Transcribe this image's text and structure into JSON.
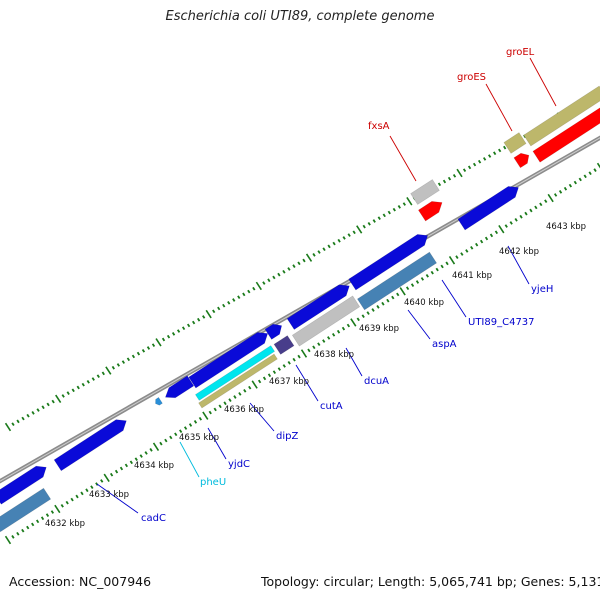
{
  "title": "Escherichia coli UTI89, complete genome",
  "footer": {
    "accession": "Accession: NC_007946",
    "topology": "Topology: circular; Length: 5,065,741 bp; Genes: 5,131"
  },
  "colors": {
    "background": "#ffffff",
    "backbone": "#8c8c8c",
    "tick": "#1a7a1a",
    "blue_gene": "#0a0ad8",
    "steelblue_gene": "#4682b4",
    "red_gene": "#ff0000",
    "gray_gene": "#c0c0c0",
    "khaki_gene": "#bdb76b",
    "cyan_gene": "#00e5ee",
    "slate_gene": "#483d8b",
    "blue_label": "#0000cc",
    "red_label": "#cc0000",
    "cyan_label": "#00bbdd"
  },
  "scale_labels": [
    "4632 kbp",
    "4633 kbp",
    "4634 kbp",
    "4635 kbp",
    "4636 kbp",
    "4637 kbp",
    "4638 kbp",
    "4639 kbp",
    "4640 kbp",
    "4641 kbp",
    "4642 kbp",
    "4643 kbp"
  ],
  "gene_labels": [
    {
      "text": "cadC",
      "color": "blue"
    },
    {
      "text": "pheU",
      "color": "cyan"
    },
    {
      "text": "yjdC",
      "color": "blue"
    },
    {
      "text": "dipZ",
      "color": "blue"
    },
    {
      "text": "cutA",
      "color": "blue"
    },
    {
      "text": "dcuA",
      "color": "blue"
    },
    {
      "text": "aspA",
      "color": "blue"
    },
    {
      "text": "UTI89_C4737",
      "color": "blue"
    },
    {
      "text": "yjeH",
      "color": "blue"
    },
    {
      "text": "fxsA",
      "color": "red"
    },
    {
      "text": "groES",
      "color": "red"
    },
    {
      "text": "groEL",
      "color": "red"
    }
  ]
}
